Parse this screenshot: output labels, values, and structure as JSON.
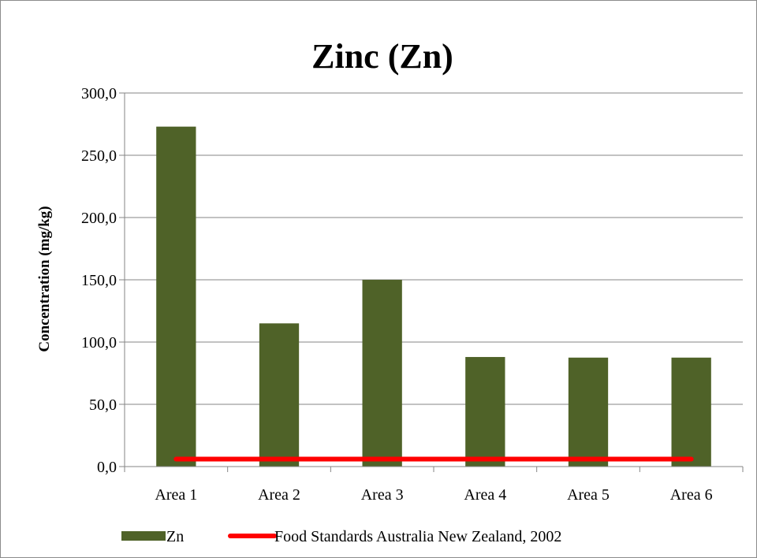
{
  "chart_data": {
    "type": "bar",
    "title": "Zinc (Zn)",
    "xlabel": "",
    "ylabel": "Concentration (mg/kg)",
    "categories": [
      "Area 1",
      "Area 2",
      "Area 3",
      "Area 4",
      "Area 5",
      "Area 6"
    ],
    "series": [
      {
        "name": "Zn",
        "kind": "bar",
        "color": "#4f6228",
        "values": [
          273.0,
          115.0,
          150.0,
          88.0,
          87.5,
          87.5
        ]
      },
      {
        "name": "Food Standards Australia New Zealand, 2002",
        "kind": "line",
        "color": "#ff0000",
        "values": [
          6.0,
          6.0,
          6.0,
          6.0,
          6.0,
          6.0
        ]
      }
    ],
    "ylim": [
      0,
      300
    ],
    "yticks": [
      0,
      50,
      100,
      150,
      200,
      250,
      300
    ],
    "ytick_labels": [
      "0,0",
      "50,0",
      "100,0",
      "150,0",
      "200,0",
      "250,0",
      "300,0"
    ],
    "grid": true,
    "legend_position": "bottom"
  }
}
